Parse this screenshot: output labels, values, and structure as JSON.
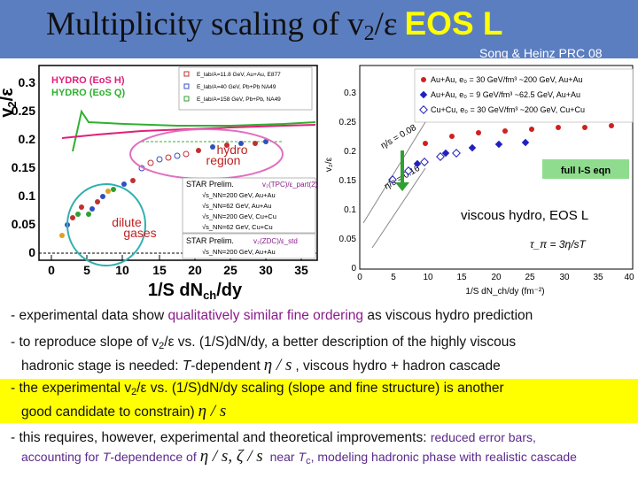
{
  "header": {
    "title_main": "Multiplicity scaling of v",
    "title_sub": "2",
    "title_tail": "/ε",
    "title_eos": "EOS L",
    "citation": "Song & Heinz PRC 08"
  },
  "left_plot": {
    "ylabel": "v",
    "ylabel_sub": "2",
    "ylabel_tail": "/ε",
    "xlabel": "1/S dN",
    "xlabel_sub": "ch",
    "xlabel_tail": "/dy",
    "yticks": [
      "0",
      "0.05",
      "0.1",
      "0.15",
      "0.2",
      "0.25",
      "0.3"
    ],
    "xticks": [
      "0",
      "5",
      "10",
      "15",
      "20",
      "25",
      "30",
      "35"
    ],
    "hydro_q": "HYDRO (EoS Q)",
    "hydro_h": "HYDRO (EoS H)",
    "legend_top": [
      "E_lab/A=11.8 GeV, Au+Au, E877",
      "E_lab/A=40 GeV, Pb+Pb NA49",
      "E_lab/A=158 GeV, Pb+Pb, NA49"
    ],
    "hydro_region_1": "hydro",
    "hydro_region_2": "region",
    "dilute_1": "dilute",
    "dilute_2": "gases",
    "star_prelim_1": "STAR Prelim.",
    "star_eq_1": "v₂(TPC)/ε_part(2)",
    "star_rows_1": [
      "√s_NN=200 GeV, Au+Au",
      "√s_NN=62 GeV, Au+Au",
      "√s_NN=200 GeV, Cu+Cu",
      "√s_NN=62 GeV, Cu+Cu"
    ],
    "star_prelim_2": "STAR Prelim.",
    "star_eq_2": "v₂(ZDC)/ε_std",
    "star_rows_2": [
      "√s_NN=200 GeV, Au+Au"
    ]
  },
  "right_plot": {
    "legend": [
      "Au+Au, e₀ = 30 GeV/fm³ ~200 GeV, Au+Au",
      "Au+Au, e₀ = 9 GeV/fm³ ~62.5 GeV, Au+Au",
      "Cu+Cu, e₀ = 30 GeV/fm³ ~200 GeV, Cu+Cu"
    ],
    "ylabel": "v₂/ε",
    "xlabel": "1/S dN_ch/dy (fm⁻²)",
    "yticks": [
      "0",
      "0.05",
      "0.1",
      "0.15",
      "0.2",
      "0.25",
      "0.3"
    ],
    "xticks": [
      "0",
      "5",
      "10",
      "15",
      "20",
      "25",
      "30",
      "35",
      "40"
    ],
    "eta_008": "η/s = 0.08",
    "eta_016": "η/s = 0.16",
    "full_is": "full I-S eqn",
    "viscous": "viscous hydro, EOS L",
    "tau": "τ_π = 3η/sT"
  },
  "bullets": {
    "b1_pre": "- experimental data show ",
    "b1_hl": "qualitatively similar fine ordering",
    "b1_post": " as viscous hydro prediction",
    "b2_line1_pre": "- to reproduce slope of v",
    "b2_line1_sub": "2",
    "b2_line1_post": "/ε vs. (1/S)dN/dy, a better description of the highly viscous",
    "b2_line2_pre": "hadronic stage is needed: ",
    "b2_line2_ital": "T",
    "b2_line2_mid": "-dependent",
    "b2_eta": "η / s",
    "b2_line2_post": ",  viscous hydro + hadron cascade",
    "b3_line1_pre": "- the experimental v",
    "b3_line1_sub": "2",
    "b3_line1_post": "/ε vs. (1/S)dN/dy scaling (slope and fine structure) is another",
    "b3_line2": "good candidate to constrain)",
    "b3_eta": "η / s",
    "b4_line1_pre": "- this requires, however, experimental and theoretical improvements: ",
    "b4_line1_hl": "reduced error bars,",
    "b4_line2_pre": "accounting for ",
    "b4_line2_ital": "T",
    "b4_line2_mid": "-dependence of",
    "b4_eta": "η / s, ζ / s",
    "b4_line2_post1": " near ",
    "b4_line2_tc": "T",
    "b4_line2_tc_sub": "c",
    "b4_line2_post2": ", modeling hadronic phase with realistic cascade"
  }
}
